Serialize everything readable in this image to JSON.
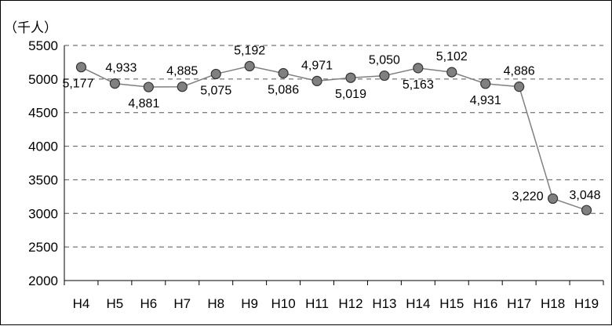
{
  "chart_data": {
    "type": "line",
    "unit_label": "（千人）",
    "categories": [
      "H4",
      "H5",
      "H6",
      "H7",
      "H8",
      "H9",
      "H10",
      "H11",
      "H12",
      "H13",
      "H14",
      "H15",
      "H16",
      "H17",
      "H18",
      "H19"
    ],
    "values": [
      5177,
      4933,
      4881,
      4885,
      5075,
      5192,
      5086,
      4971,
      5019,
      5050,
      5163,
      5102,
      4931,
      4886,
      3220,
      3048
    ],
    "data_labels": [
      "5,177",
      "4,933",
      "4,881",
      "4,885",
      "5,075",
      "5,192",
      "5,086",
      "4,971",
      "5,019",
      "5,050",
      "5,163",
      "5,102",
      "4,931",
      "4,886",
      "3,220",
      "3,048"
    ],
    "ylim": [
      2000,
      5500
    ],
    "yticks": [
      "2000",
      "2500",
      "3000",
      "3500",
      "4000",
      "4500",
      "5000",
      "5500"
    ],
    "grid": "horizontal-dashed",
    "title": "",
    "xlabel": "",
    "ylabel": "",
    "colors": {
      "line": "#808080",
      "marker_fill": "#808080",
      "marker_stroke": "#333333",
      "grid": "#555555"
    }
  }
}
